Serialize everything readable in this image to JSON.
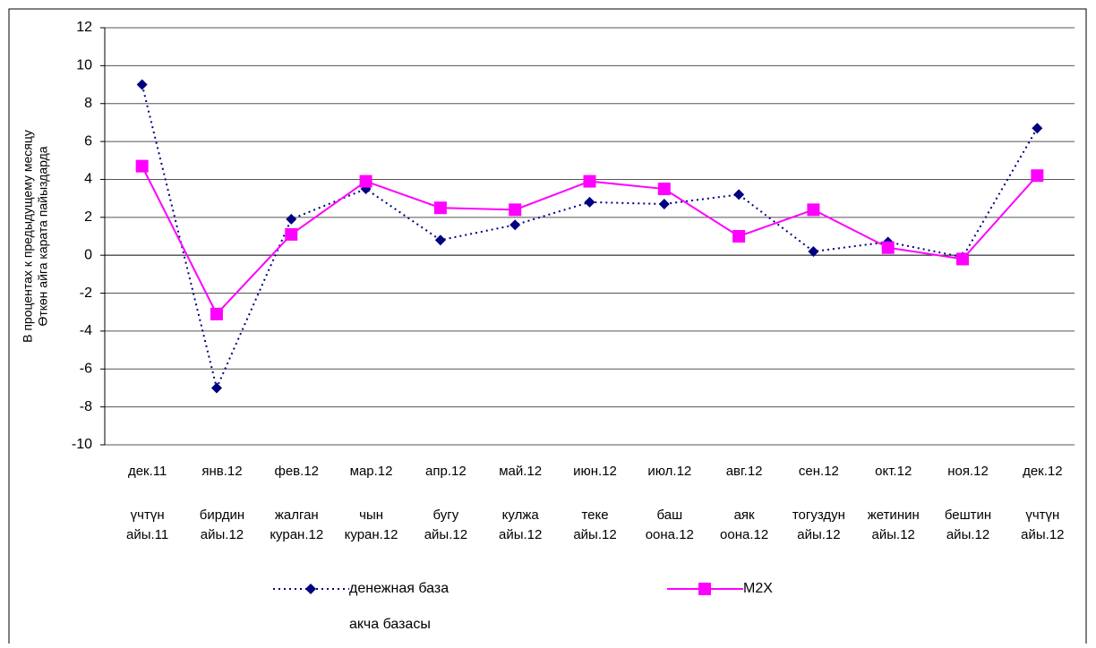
{
  "chart_data": {
    "type": "line",
    "y_axis_label": [
      "В процентах к предыдущему месяцу",
      "Өткөн айга карата пайыздарда"
    ],
    "categories": [
      "дек.11",
      "янв.12",
      "фев.12",
      "мар.12",
      "апр.12",
      "май.12",
      "июн.12",
      "июл.12",
      "авг.12",
      "сен.12",
      "окт.12",
      "ноя.12",
      "дек.12"
    ],
    "secondary_categories": [
      [
        "үчтүн",
        "айы.11"
      ],
      [
        "бирдин",
        "айы.12"
      ],
      [
        "жалган",
        "куран.12"
      ],
      [
        "чын",
        "куран.12"
      ],
      [
        "бугу",
        "айы.12"
      ],
      [
        "кулжа",
        "айы.12"
      ],
      [
        "теке",
        "айы.12"
      ],
      [
        "баш",
        "оона.12"
      ],
      [
        "аяк",
        "оона.12"
      ],
      [
        "тогуздун",
        "айы.12"
      ],
      [
        "жетинин",
        "айы.12"
      ],
      [
        "бештин",
        "айы.12"
      ],
      [
        "үчтүн",
        "айы.12"
      ]
    ],
    "series": [
      {
        "name": "денежная база",
        "legend_note": "акча базасы",
        "color": "#000080",
        "style": "dotted",
        "marker": "diamond",
        "values": [
          9,
          -7,
          1.9,
          3.5,
          0.8,
          1.6,
          2.8,
          2.7,
          3.2,
          0.2,
          0.7,
          -0.1,
          6.7
        ]
      },
      {
        "name": "M2X",
        "color": "#ff00ff",
        "style": "solid",
        "marker": "square",
        "values": [
          4.7,
          -3.1,
          1.1,
          3.9,
          2.5,
          2.4,
          3.9,
          3.5,
          1.0,
          2.4,
          0.4,
          -0.2,
          4.2
        ]
      }
    ],
    "ylim": [
      -10,
      12
    ],
    "yticks": [
      -10,
      -8,
      -6,
      -4,
      -2,
      0,
      2,
      4,
      6,
      8,
      10,
      12
    ],
    "grid": true
  }
}
